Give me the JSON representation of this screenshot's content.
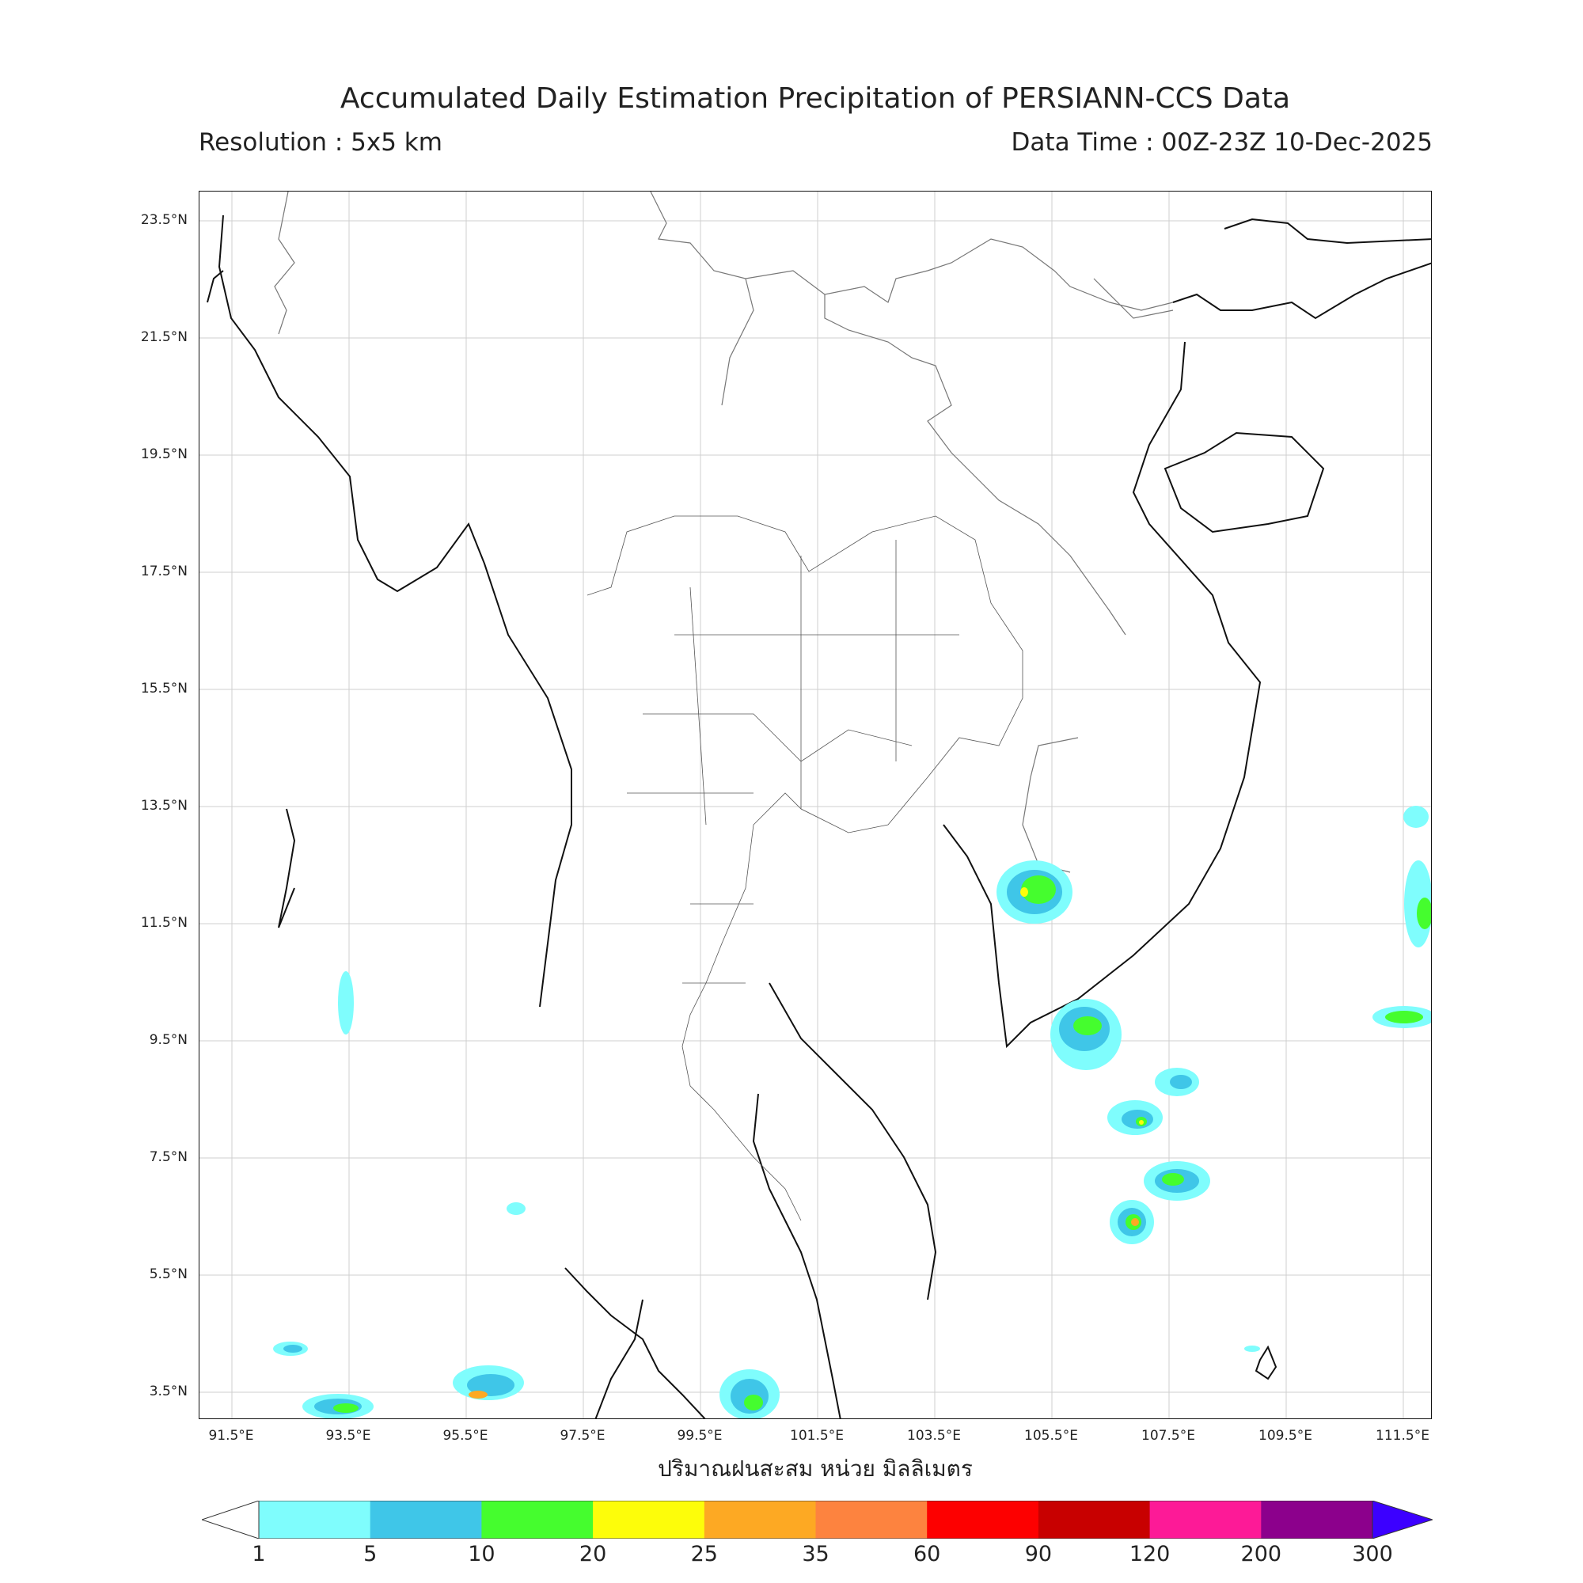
{
  "header": {
    "title": "Accumulated Daily Estimation Precipitation of PERSIANN-CCS Data",
    "resolution": "Resolution : 5x5 km",
    "data_time": "Data Time : 00Z-23Z 10-Dec-2025"
  },
  "axes": {
    "lat_labels": [
      "23.5°N",
      "21.5°N",
      "19.5°N",
      "17.5°N",
      "15.5°N",
      "13.5°N",
      "11.5°N",
      "9.5°N",
      "7.5°N",
      "5.5°N",
      "3.5°N"
    ],
    "lon_labels": [
      "91.5°E",
      "93.5°E",
      "95.5°E",
      "97.5°E",
      "99.5°E",
      "101.5°E",
      "103.5°E",
      "105.5°E",
      "107.5°E",
      "109.5°E",
      "111.5°E"
    ],
    "x_title": "ปริมาณฝนสะสม หน่วย มิลลิเมตร"
  },
  "colorbar": {
    "labels": [
      "1",
      "5",
      "10",
      "20",
      "25",
      "35",
      "60",
      "90",
      "120",
      "200",
      "300"
    ],
    "colors": [
      "#7ffdfd",
      "#3fc6e8",
      "#45fd2e",
      "#fdfd0a",
      "#fda923",
      "#fd833f",
      "#fd0000",
      "#c80000",
      "#fd1a97",
      "#8c008c",
      "#3c00ff"
    ]
  }
}
